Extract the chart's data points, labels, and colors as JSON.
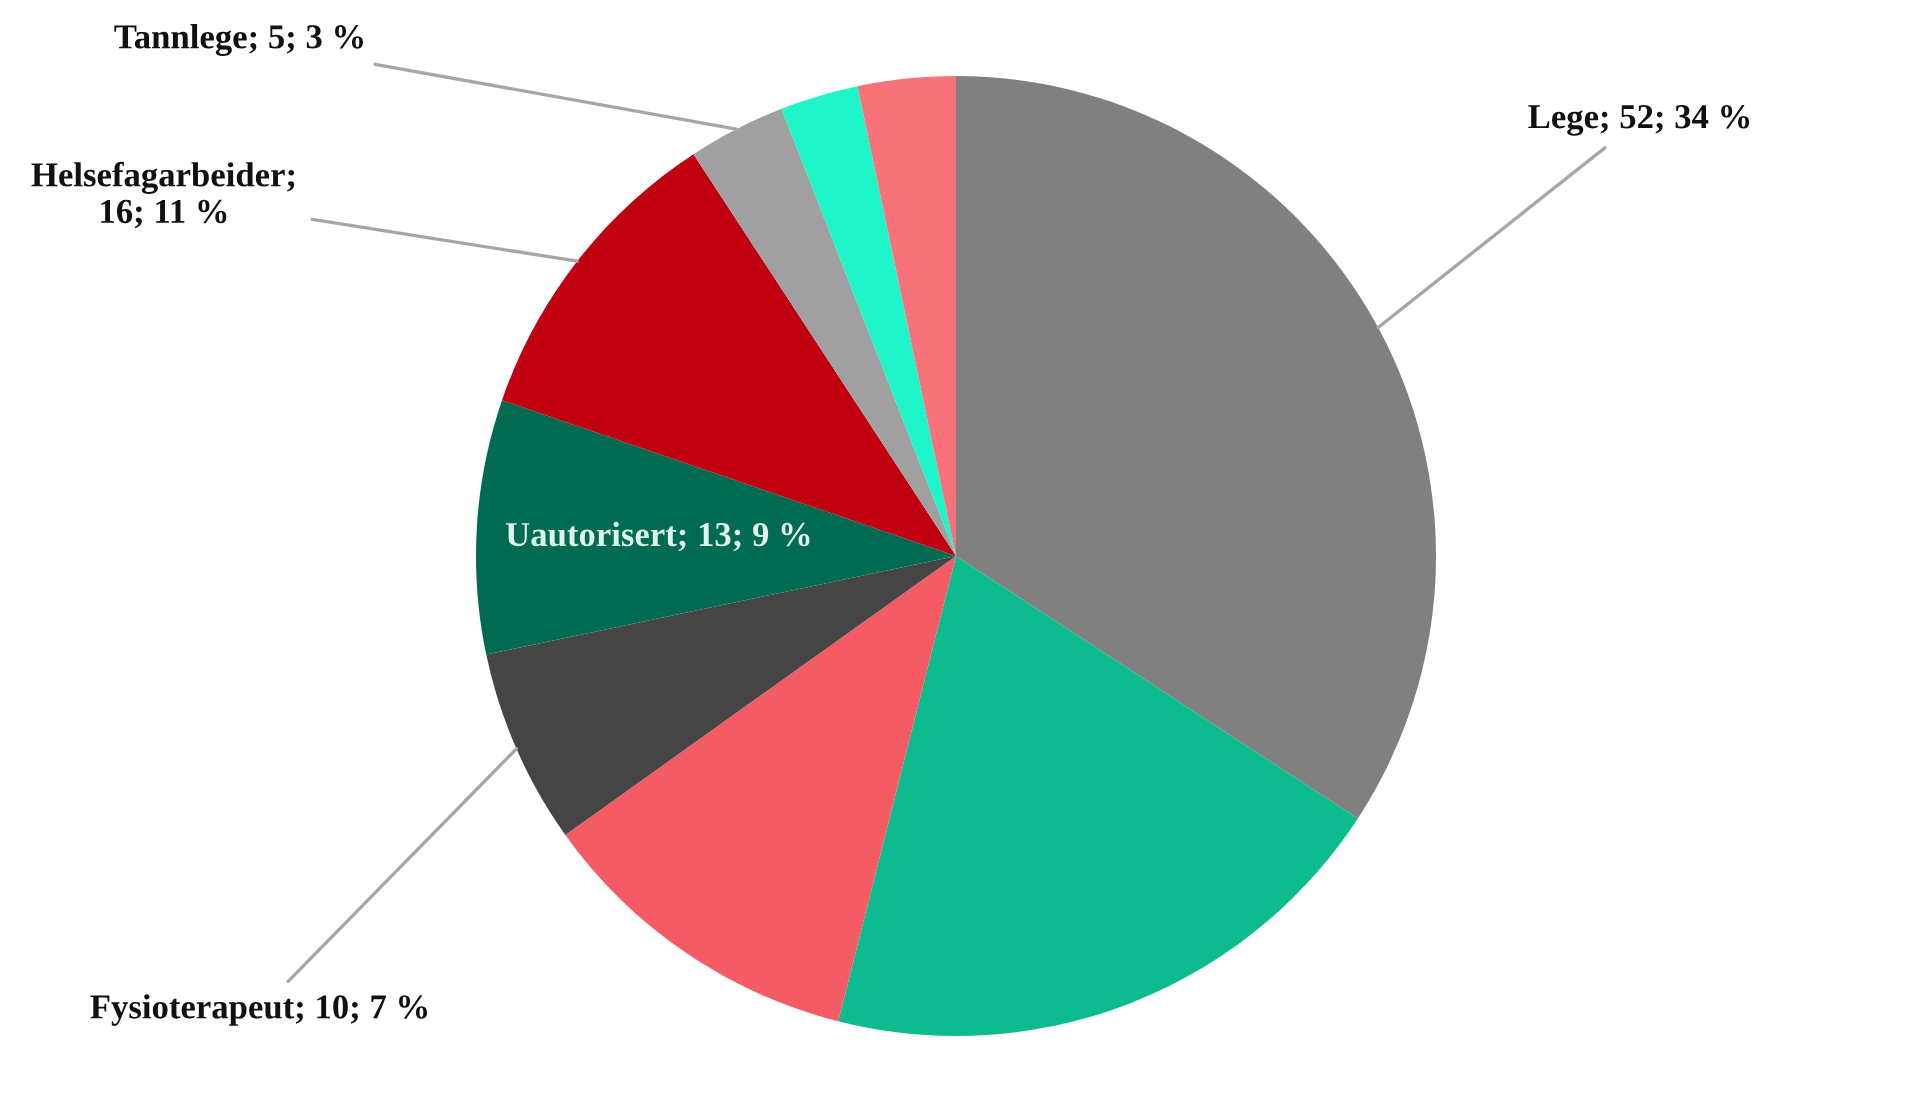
{
  "chart_data": {
    "type": "pie",
    "categories": [
      "Lege; 52; 34 %",
      null,
      null,
      "Fysioterapeut; 10; 7 %",
      "Uautorisert; 13; 9 %",
      "Helsefagarbeider; 16; 11 %",
      "Tannlege; 5; 3 %",
      null,
      null
    ],
    "values": [
      52,
      30,
      17,
      10,
      13,
      16,
      5,
      4,
      5
    ],
    "colors": [
      "#808080",
      "#0dbb8f",
      "#f45b65",
      "#454545",
      "#006b50",
      "#c00010",
      "#a0a0a0",
      "#1ef5c8",
      "#f87279"
    ]
  }
}
